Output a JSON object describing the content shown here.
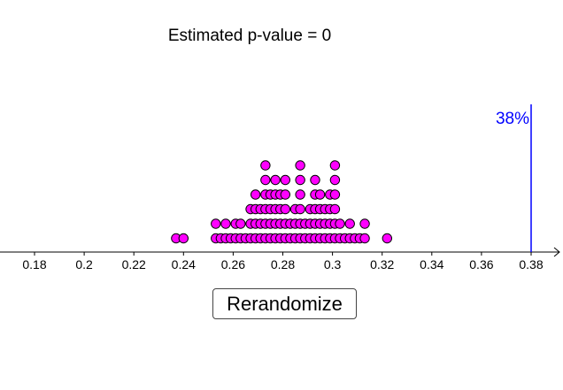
{
  "title": "Estimated p-value = 0",
  "button": {
    "label": "Rerandomize"
  },
  "colors": {
    "dot_fill": "#ff00ff",
    "dot_stroke": "#000000",
    "marker_line": "#0000ff",
    "axis": "#000000"
  },
  "chart_data": {
    "type": "dotplot",
    "x_ticks": [
      "0.18",
      "0.2",
      "0.22",
      "0.24",
      "0.26",
      "0.28",
      "0.3",
      "0.32",
      "0.34",
      "0.36",
      "0.38"
    ],
    "xlim": [
      0.163,
      0.408
    ],
    "observed": {
      "value": 0.38,
      "label": "38%"
    },
    "columns": [
      {
        "x": 0.237,
        "count": 1
      },
      {
        "x": 0.24,
        "count": 1
      },
      {
        "x": 0.253,
        "count": 2
      },
      {
        "x": 0.255,
        "count": 1
      },
      {
        "x": 0.257,
        "count": 2
      },
      {
        "x": 0.259,
        "count": 1
      },
      {
        "x": 0.261,
        "count": 2
      },
      {
        "x": 0.263,
        "count": 2
      },
      {
        "x": 0.265,
        "count": 1
      },
      {
        "x": 0.267,
        "count": 3
      },
      {
        "x": 0.269,
        "count": 4
      },
      {
        "x": 0.271,
        "count": 3
      },
      {
        "x": 0.273,
        "count": 6
      },
      {
        "x": 0.275,
        "count": 4
      },
      {
        "x": 0.277,
        "count": 5
      },
      {
        "x": 0.279,
        "count": 4
      },
      {
        "x": 0.281,
        "count": 5
      },
      {
        "x": 0.283,
        "count": 2
      },
      {
        "x": 0.285,
        "count": 3
      },
      {
        "x": 0.287,
        "count": 6
      },
      {
        "x": 0.289,
        "count": 2
      },
      {
        "x": 0.291,
        "count": 3
      },
      {
        "x": 0.293,
        "count": 5
      },
      {
        "x": 0.295,
        "count": 4
      },
      {
        "x": 0.297,
        "count": 3
      },
      {
        "x": 0.299,
        "count": 4
      },
      {
        "x": 0.301,
        "count": 6
      },
      {
        "x": 0.303,
        "count": 2
      },
      {
        "x": 0.305,
        "count": 1
      },
      {
        "x": 0.307,
        "count": 2
      },
      {
        "x": 0.309,
        "count": 1
      },
      {
        "x": 0.311,
        "count": 1
      },
      {
        "x": 0.313,
        "count": 2
      },
      {
        "x": 0.322,
        "count": 1
      }
    ]
  }
}
